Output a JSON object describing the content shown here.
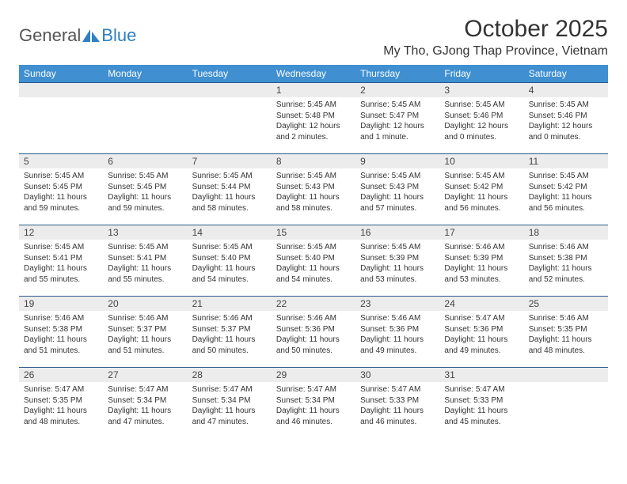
{
  "logo": {
    "text_general": "General",
    "text_blue": "Blue"
  },
  "title": "October 2025",
  "location": "My Tho, GJong Thap Province, Vietnam",
  "weekdays": [
    "Sunday",
    "Monday",
    "Tuesday",
    "Wednesday",
    "Thursday",
    "Friday",
    "Saturday"
  ],
  "colors": {
    "header_bg": "#3f8fd1",
    "header_text": "#ffffff",
    "daynum_bg": "#ececec",
    "border": "#2a5a8a",
    "logo_blue": "#2f7fc1"
  },
  "weeks": [
    [
      {
        "day": "",
        "sunrise": "",
        "sunset": "",
        "daylight": ""
      },
      {
        "day": "",
        "sunrise": "",
        "sunset": "",
        "daylight": ""
      },
      {
        "day": "",
        "sunrise": "",
        "sunset": "",
        "daylight": ""
      },
      {
        "day": "1",
        "sunrise": "Sunrise: 5:45 AM",
        "sunset": "Sunset: 5:48 PM",
        "daylight": "Daylight: 12 hours and 2 minutes."
      },
      {
        "day": "2",
        "sunrise": "Sunrise: 5:45 AM",
        "sunset": "Sunset: 5:47 PM",
        "daylight": "Daylight: 12 hours and 1 minute."
      },
      {
        "day": "3",
        "sunrise": "Sunrise: 5:45 AM",
        "sunset": "Sunset: 5:46 PM",
        "daylight": "Daylight: 12 hours and 0 minutes."
      },
      {
        "day": "4",
        "sunrise": "Sunrise: 5:45 AM",
        "sunset": "Sunset: 5:46 PM",
        "daylight": "Daylight: 12 hours and 0 minutes."
      }
    ],
    [
      {
        "day": "5",
        "sunrise": "Sunrise: 5:45 AM",
        "sunset": "Sunset: 5:45 PM",
        "daylight": "Daylight: 11 hours and 59 minutes."
      },
      {
        "day": "6",
        "sunrise": "Sunrise: 5:45 AM",
        "sunset": "Sunset: 5:45 PM",
        "daylight": "Daylight: 11 hours and 59 minutes."
      },
      {
        "day": "7",
        "sunrise": "Sunrise: 5:45 AM",
        "sunset": "Sunset: 5:44 PM",
        "daylight": "Daylight: 11 hours and 58 minutes."
      },
      {
        "day": "8",
        "sunrise": "Sunrise: 5:45 AM",
        "sunset": "Sunset: 5:43 PM",
        "daylight": "Daylight: 11 hours and 58 minutes."
      },
      {
        "day": "9",
        "sunrise": "Sunrise: 5:45 AM",
        "sunset": "Sunset: 5:43 PM",
        "daylight": "Daylight: 11 hours and 57 minutes."
      },
      {
        "day": "10",
        "sunrise": "Sunrise: 5:45 AM",
        "sunset": "Sunset: 5:42 PM",
        "daylight": "Daylight: 11 hours and 56 minutes."
      },
      {
        "day": "11",
        "sunrise": "Sunrise: 5:45 AM",
        "sunset": "Sunset: 5:42 PM",
        "daylight": "Daylight: 11 hours and 56 minutes."
      }
    ],
    [
      {
        "day": "12",
        "sunrise": "Sunrise: 5:45 AM",
        "sunset": "Sunset: 5:41 PM",
        "daylight": "Daylight: 11 hours and 55 minutes."
      },
      {
        "day": "13",
        "sunrise": "Sunrise: 5:45 AM",
        "sunset": "Sunset: 5:41 PM",
        "daylight": "Daylight: 11 hours and 55 minutes."
      },
      {
        "day": "14",
        "sunrise": "Sunrise: 5:45 AM",
        "sunset": "Sunset: 5:40 PM",
        "daylight": "Daylight: 11 hours and 54 minutes."
      },
      {
        "day": "15",
        "sunrise": "Sunrise: 5:45 AM",
        "sunset": "Sunset: 5:40 PM",
        "daylight": "Daylight: 11 hours and 54 minutes."
      },
      {
        "day": "16",
        "sunrise": "Sunrise: 5:45 AM",
        "sunset": "Sunset: 5:39 PM",
        "daylight": "Daylight: 11 hours and 53 minutes."
      },
      {
        "day": "17",
        "sunrise": "Sunrise: 5:46 AM",
        "sunset": "Sunset: 5:39 PM",
        "daylight": "Daylight: 11 hours and 53 minutes."
      },
      {
        "day": "18",
        "sunrise": "Sunrise: 5:46 AM",
        "sunset": "Sunset: 5:38 PM",
        "daylight": "Daylight: 11 hours and 52 minutes."
      }
    ],
    [
      {
        "day": "19",
        "sunrise": "Sunrise: 5:46 AM",
        "sunset": "Sunset: 5:38 PM",
        "daylight": "Daylight: 11 hours and 51 minutes."
      },
      {
        "day": "20",
        "sunrise": "Sunrise: 5:46 AM",
        "sunset": "Sunset: 5:37 PM",
        "daylight": "Daylight: 11 hours and 51 minutes."
      },
      {
        "day": "21",
        "sunrise": "Sunrise: 5:46 AM",
        "sunset": "Sunset: 5:37 PM",
        "daylight": "Daylight: 11 hours and 50 minutes."
      },
      {
        "day": "22",
        "sunrise": "Sunrise: 5:46 AM",
        "sunset": "Sunset: 5:36 PM",
        "daylight": "Daylight: 11 hours and 50 minutes."
      },
      {
        "day": "23",
        "sunrise": "Sunrise: 5:46 AM",
        "sunset": "Sunset: 5:36 PM",
        "daylight": "Daylight: 11 hours and 49 minutes."
      },
      {
        "day": "24",
        "sunrise": "Sunrise: 5:47 AM",
        "sunset": "Sunset: 5:36 PM",
        "daylight": "Daylight: 11 hours and 49 minutes."
      },
      {
        "day": "25",
        "sunrise": "Sunrise: 5:46 AM",
        "sunset": "Sunset: 5:35 PM",
        "daylight": "Daylight: 11 hours and 48 minutes."
      }
    ],
    [
      {
        "day": "26",
        "sunrise": "Sunrise: 5:47 AM",
        "sunset": "Sunset: 5:35 PM",
        "daylight": "Daylight: 11 hours and 48 minutes."
      },
      {
        "day": "27",
        "sunrise": "Sunrise: 5:47 AM",
        "sunset": "Sunset: 5:34 PM",
        "daylight": "Daylight: 11 hours and 47 minutes."
      },
      {
        "day": "28",
        "sunrise": "Sunrise: 5:47 AM",
        "sunset": "Sunset: 5:34 PM",
        "daylight": "Daylight: 11 hours and 47 minutes."
      },
      {
        "day": "29",
        "sunrise": "Sunrise: 5:47 AM",
        "sunset": "Sunset: 5:34 PM",
        "daylight": "Daylight: 11 hours and 46 minutes."
      },
      {
        "day": "30",
        "sunrise": "Sunrise: 5:47 AM",
        "sunset": "Sunset: 5:33 PM",
        "daylight": "Daylight: 11 hours and 46 minutes."
      },
      {
        "day": "31",
        "sunrise": "Sunrise: 5:47 AM",
        "sunset": "Sunset: 5:33 PM",
        "daylight": "Daylight: 11 hours and 45 minutes."
      },
      {
        "day": "",
        "sunrise": "",
        "sunset": "",
        "daylight": ""
      }
    ]
  ]
}
